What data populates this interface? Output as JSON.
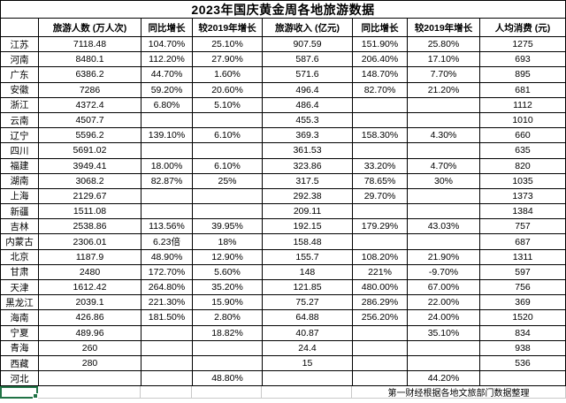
{
  "title": "2023年国庆黄金周各地旅游数据",
  "table": {
    "headers": [
      "",
      "旅游人数 (万人次)",
      "同比增长",
      "较2019年增长",
      "旅游收入 (亿元)",
      "同比增长",
      "较2019年增长",
      "人均消费 (元)"
    ],
    "rows": [
      [
        "江苏",
        "7118.48",
        "104.70%",
        "25.10%",
        "907.59",
        "151.90%",
        "25.80%",
        "1275"
      ],
      [
        "河南",
        "8480.1",
        "112.20%",
        "27.90%",
        "587.6",
        "206.40%",
        "17.10%",
        "693"
      ],
      [
        "广东",
        "6386.2",
        "44.70%",
        "1.60%",
        "571.6",
        "148.70%",
        "7.70%",
        "895"
      ],
      [
        "安徽",
        "7286",
        "59.20%",
        "20.60%",
        "496.4",
        "82.70%",
        "21.20%",
        "681"
      ],
      [
        "浙江",
        "4372.4",
        "6.80%",
        "5.10%",
        "486.4",
        "",
        "",
        "1112"
      ],
      [
        "云南",
        "4507.7",
        "",
        "",
        "455.3",
        "",
        "",
        "1010"
      ],
      [
        "辽宁",
        "5596.2",
        "139.10%",
        "6.10%",
        "369.3",
        "158.30%",
        "4.30%",
        "660"
      ],
      [
        "四川",
        "5691.02",
        "",
        "",
        "361.53",
        "",
        "",
        "635"
      ],
      [
        "福建",
        "3949.41",
        "18.00%",
        "6.10%",
        "323.86",
        "33.20%",
        "4.70%",
        "820"
      ],
      [
        "湖南",
        "3068.2",
        "82.87%",
        "25%",
        "317.5",
        "78.65%",
        "30%",
        "1035"
      ],
      [
        "上海",
        "2129.67",
        "",
        "",
        "292.38",
        "29.70%",
        "",
        "1373"
      ],
      [
        "新疆",
        "1511.08",
        "",
        "",
        "209.11",
        "",
        "",
        "1384"
      ],
      [
        "吉林",
        "2538.86",
        "113.56%",
        "39.95%",
        "192.15",
        "179.29%",
        "43.03%",
        "757"
      ],
      [
        "内蒙古",
        "2306.01",
        "6.23倍",
        "18%",
        "158.48",
        "",
        "",
        "687"
      ],
      [
        "北京",
        "1187.9",
        "48.90%",
        "12.90%",
        "155.7",
        "108.20%",
        "21.90%",
        "1311"
      ],
      [
        "甘肃",
        "2480",
        "172.70%",
        "5.60%",
        "148",
        "221%",
        "-9.70%",
        "597"
      ],
      [
        "天津",
        "1612.42",
        "264.80%",
        "35.20%",
        "121.85",
        "480.00%",
        "67.00%",
        "756"
      ],
      [
        "黑龙江",
        "2039.1",
        "221.30%",
        "15.90%",
        "75.27",
        "286.29%",
        "22.00%",
        "369"
      ],
      [
        "海南",
        "426.86",
        "181.50%",
        "2.80%",
        "64.88",
        "256.20%",
        "24.00%",
        "1520"
      ],
      [
        "宁夏",
        "489.96",
        "",
        "18.82%",
        "40.87",
        "",
        "35.10%",
        "834"
      ],
      [
        "青海",
        "260",
        "",
        "",
        "24.4",
        "",
        "",
        "938"
      ],
      [
        "西藏",
        "280",
        "",
        "",
        "15",
        "",
        "",
        "536"
      ],
      [
        "河北",
        "",
        "",
        "48.80%",
        "",
        "",
        "44.20%",
        ""
      ]
    ]
  },
  "footer": {
    "source": "第一财经根据各地文旅部门数据整理"
  },
  "colors": {
    "selection_green": "#217346",
    "grid_gray": "#c9c9c9",
    "table_border": "#000000",
    "background": "#ffffff"
  }
}
